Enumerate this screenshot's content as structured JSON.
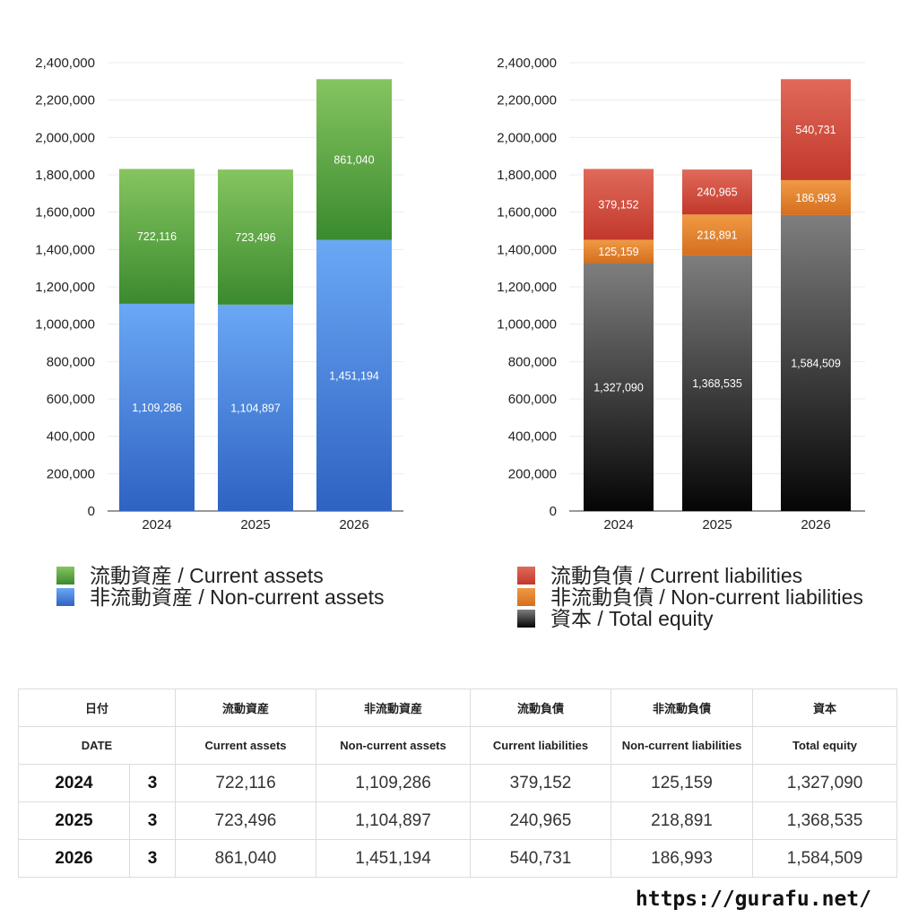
{
  "chart_data": [
    {
      "type": "bar",
      "stacked": true,
      "categories": [
        "2024",
        "2025",
        "2026"
      ],
      "ylim": [
        0,
        2400000
      ],
      "ytick_step": 200000,
      "grid": true,
      "legend_position": "bottom",
      "series": [
        {
          "name": "非流動資産 / Non-current assets",
          "values": [
            1109286,
            1104897,
            1451194
          ],
          "color_top": "#6aa8f5",
          "color_bottom": "#2f62c2"
        },
        {
          "name": "流動資産 / Current assets",
          "values": [
            722116,
            723496,
            861040
          ],
          "color_top": "#86c560",
          "color_bottom": "#3a8a2e"
        }
      ]
    },
    {
      "type": "bar",
      "stacked": true,
      "categories": [
        "2024",
        "2025",
        "2026"
      ],
      "ylim": [
        0,
        2400000
      ],
      "ytick_step": 200000,
      "grid": true,
      "legend_position": "bottom",
      "series": [
        {
          "name": "資本 / Total equity",
          "values": [
            1327090,
            1368535,
            1584509
          ],
          "color_top": "#7e7e7e",
          "color_bottom": "#050505"
        },
        {
          "name": "非流動負債 / Non-current liabilities",
          "values": [
            125159,
            218891,
            186993
          ],
          "color_top": "#f09a45",
          "color_bottom": "#d46f1e"
        },
        {
          "name": "流動負債 / Current liabilities",
          "values": [
            379152,
            240965,
            540731
          ],
          "color_top": "#e06a5a",
          "color_bottom": "#c2382b"
        }
      ]
    }
  ],
  "legend_left": [
    {
      "label": "流動資産 / Current assets",
      "color_top": "#86c560",
      "color_bottom": "#3a8a2e"
    },
    {
      "label": "非流動資産 / Non-current assets",
      "color_top": "#6aa8f5",
      "color_bottom": "#2f62c2"
    }
  ],
  "legend_right": [
    {
      "label": "流動負債 / Current liabilities",
      "color_top": "#e06a5a",
      "color_bottom": "#c2382b"
    },
    {
      "label": "非流動負債 / Non-current liabilities",
      "color_top": "#f09a45",
      "color_bottom": "#d46f1e"
    },
    {
      "label": "資本 / Total equity",
      "color_top": "#7e7e7e",
      "color_bottom": "#050505"
    }
  ],
  "table": {
    "header_jp": [
      "日付",
      "",
      "流動資産",
      "非流動資産",
      "流動負債",
      "非流動負債",
      "資本"
    ],
    "header_en": [
      "DATE",
      "",
      "Current assets",
      "Non-current assets",
      "Current liabilities",
      "Non-current liabilities",
      "Total equity"
    ],
    "rows": [
      [
        "2024",
        "3",
        "722,116",
        "1,109,286",
        "379,152",
        "125,159",
        "1,327,090"
      ],
      [
        "2025",
        "3",
        "723,496",
        "1,104,897",
        "240,965",
        "218,891",
        "1,368,535"
      ],
      [
        "2026",
        "3",
        "861,040",
        "1,451,194",
        "540,731",
        "186,993",
        "1,584,509"
      ]
    ]
  },
  "footer": "https://gurafu.net/"
}
